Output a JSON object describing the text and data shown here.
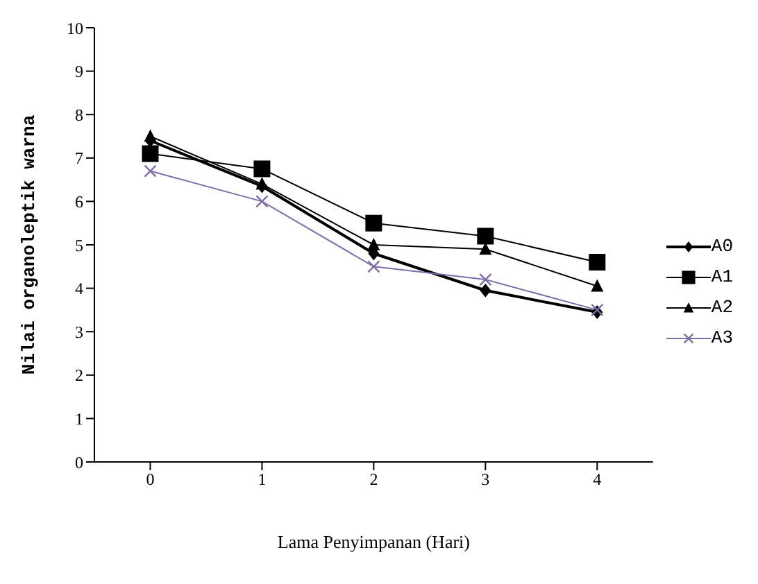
{
  "chart_data": {
    "type": "line",
    "xlabel": "Lama Penyimpanan (Hari)",
    "ylabel": "Nilai organoleptik warna",
    "categories": [
      "0",
      "1",
      "2",
      "3",
      "4"
    ],
    "series": [
      {
        "name": "A0",
        "color": "#000000",
        "marker": "diamond",
        "values": [
          7.4,
          6.35,
          4.8,
          3.95,
          3.45
        ]
      },
      {
        "name": "A1",
        "color": "#000000",
        "marker": "square",
        "values": [
          7.1,
          6.75,
          5.5,
          5.2,
          4.6
        ]
      },
      {
        "name": "A2",
        "color": "#000000",
        "marker": "triangle",
        "values": [
          7.5,
          6.4,
          5.0,
          4.9,
          4.05
        ]
      },
      {
        "name": "A3",
        "color": "#7f6fa8",
        "marker": "cross",
        "values": [
          6.7,
          6.0,
          4.5,
          4.2,
          3.5
        ]
      }
    ],
    "ylim": [
      0,
      10
    ],
    "yticks": [
      0,
      1,
      2,
      3,
      4,
      5,
      6,
      7,
      8,
      9,
      10
    ],
    "grid": false,
    "legend": "right",
    "line_style": "solid"
  }
}
